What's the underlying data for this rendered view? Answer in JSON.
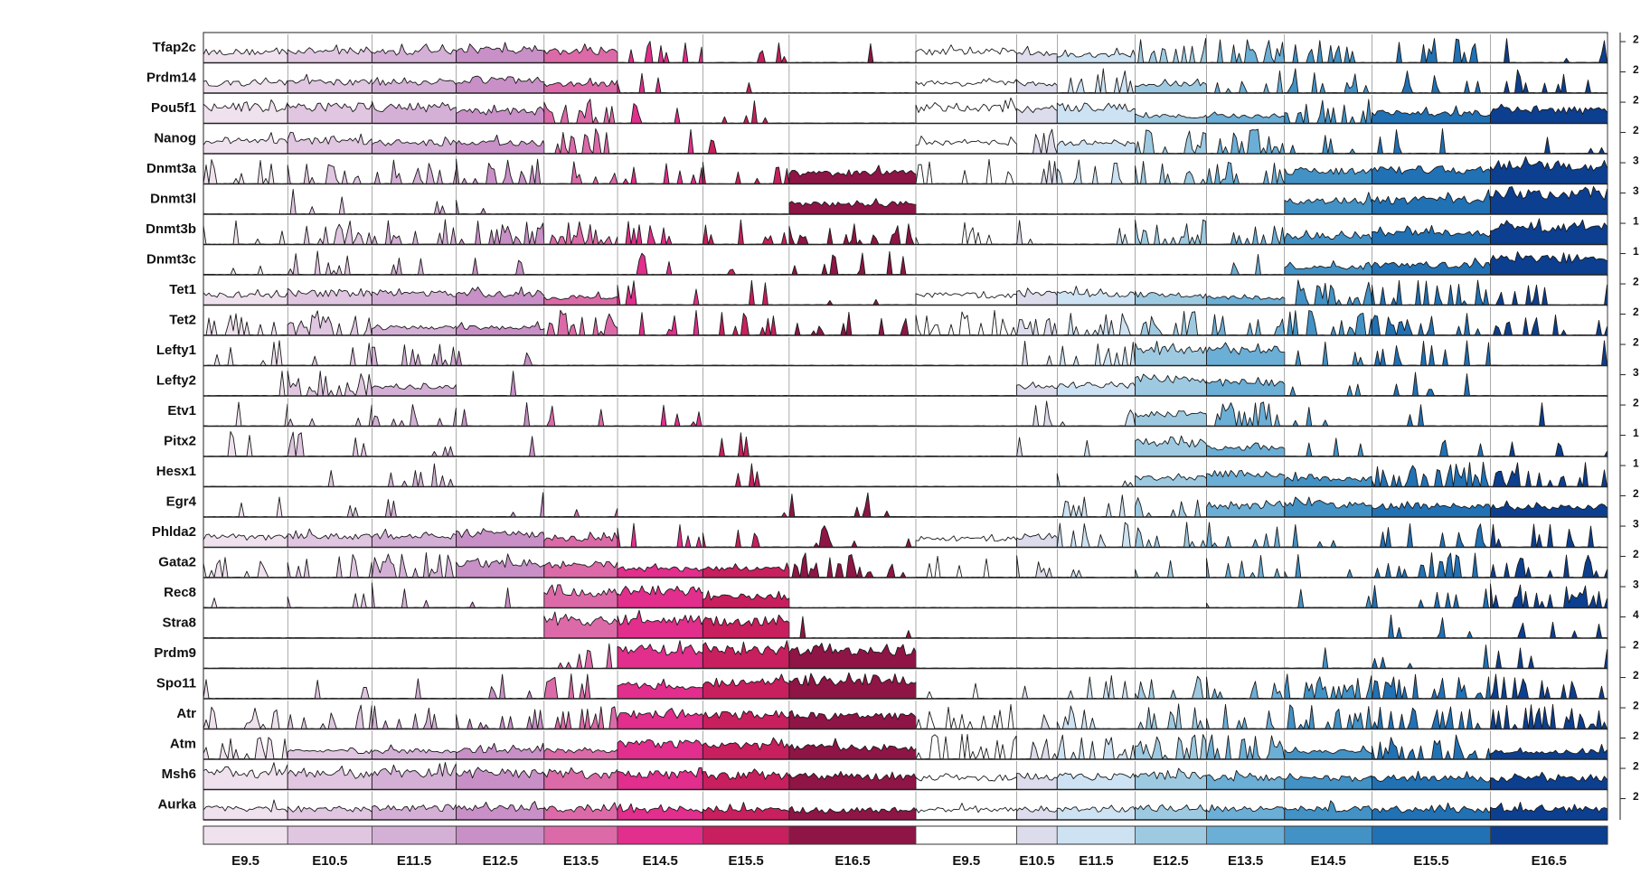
{
  "chart_data": {
    "type": "area",
    "title": "",
    "xlabel": "",
    "ylabel": "",
    "genes": [
      {
        "name": "Tfap2c",
        "scale": "2",
        "female": [
          0.5,
          0.55,
          0.5,
          0.6,
          0.5,
          0.1,
          0.05,
          0.03
        ],
        "male": [
          0.5,
          0.45,
          0.35,
          0.3,
          0.25,
          0.2,
          0.15,
          0.08
        ]
      },
      {
        "name": "Prdm14",
        "scale": "2",
        "female": [
          0.45,
          0.5,
          0.5,
          0.6,
          0.4,
          0.05,
          0.02,
          0.0
        ],
        "male": [
          0.45,
          0.4,
          0.3,
          0.4,
          0.2,
          0.15,
          0.12,
          0.08
        ]
      },
      {
        "name": "Pou5f1",
        "scale": "2",
        "female": [
          0.75,
          0.75,
          0.75,
          0.55,
          0.3,
          0.1,
          0.05,
          0.0
        ],
        "male": [
          0.7,
          0.65,
          0.75,
          0.35,
          0.35,
          0.3,
          0.45,
          0.6
        ]
      },
      {
        "name": "Nanog",
        "scale": "2",
        "female": [
          0.55,
          0.6,
          0.5,
          0.5,
          0.25,
          0.05,
          0.02,
          0.0
        ],
        "male": [
          0.5,
          0.2,
          0.5,
          0.3,
          0.2,
          0.1,
          0.08,
          0.05
        ]
      },
      {
        "name": "Dnmt3a",
        "scale": "3",
        "female": [
          0.15,
          0.2,
          0.2,
          0.2,
          0.15,
          0.1,
          0.15,
          0.5
        ],
        "male": [
          0.1,
          0.1,
          0.15,
          0.15,
          0.2,
          0.6,
          0.65,
          0.85
        ]
      },
      {
        "name": "Dnmt3l",
        "scale": "3",
        "female": [
          0.0,
          0.05,
          0.05,
          0.05,
          0.0,
          0.0,
          0.0,
          0.5
        ],
        "male": [
          0.0,
          0.0,
          0.0,
          0.0,
          0.0,
          0.6,
          0.65,
          0.9
        ]
      },
      {
        "name": "Dnmt3b",
        "scale": "1",
        "female": [
          0.1,
          0.15,
          0.2,
          0.3,
          0.3,
          0.15,
          0.15,
          0.2
        ],
        "male": [
          0.1,
          0.1,
          0.15,
          0.2,
          0.2,
          0.35,
          0.5,
          0.8
        ]
      },
      {
        "name": "Dnmt3c",
        "scale": "1",
        "female": [
          0.05,
          0.05,
          0.05,
          0.05,
          0.05,
          0.05,
          0.05,
          0.1
        ],
        "male": [
          0.0,
          0.0,
          0.0,
          0.0,
          0.05,
          0.35,
          0.45,
          0.75
        ]
      },
      {
        "name": "Tet1",
        "scale": "2",
        "female": [
          0.45,
          0.55,
          0.55,
          0.5,
          0.35,
          0.1,
          0.05,
          0.03
        ],
        "male": [
          0.45,
          0.5,
          0.5,
          0.45,
          0.35,
          0.3,
          0.25,
          0.15
        ]
      },
      {
        "name": "Tet2",
        "scale": "2",
        "female": [
          0.25,
          0.3,
          0.35,
          0.35,
          0.3,
          0.15,
          0.15,
          0.15
        ],
        "male": [
          0.3,
          0.25,
          0.25,
          0.2,
          0.2,
          0.2,
          0.2,
          0.15
        ]
      },
      {
        "name": "Lefty1",
        "scale": "2",
        "female": [
          0.05,
          0.1,
          0.15,
          0.05,
          0.0,
          0.0,
          0.0,
          0.0
        ],
        "male": [
          0.0,
          0.15,
          0.2,
          0.7,
          0.7,
          0.1,
          0.1,
          0.05
        ]
      },
      {
        "name": "Lefty2",
        "scale": "3",
        "female": [
          0.05,
          0.3,
          0.4,
          0.1,
          0.0,
          0.0,
          0.0,
          0.0
        ],
        "male": [
          0.0,
          0.4,
          0.5,
          0.8,
          0.6,
          0.05,
          0.05,
          0.0
        ]
      },
      {
        "name": "Etv1",
        "scale": "2",
        "female": [
          0.05,
          0.05,
          0.1,
          0.05,
          0.05,
          0.05,
          0.0,
          0.0
        ],
        "male": [
          0.0,
          0.05,
          0.1,
          0.55,
          0.3,
          0.05,
          0.05,
          0.05
        ]
      },
      {
        "name": "Pitx2",
        "scale": "1",
        "female": [
          0.05,
          0.05,
          0.05,
          0.05,
          0.0,
          0.0,
          0.05,
          0.0
        ],
        "male": [
          0.0,
          0.05,
          0.1,
          0.6,
          0.4,
          0.05,
          0.05,
          0.05
        ]
      },
      {
        "name": "Hesx1",
        "scale": "1",
        "female": [
          0.0,
          0.05,
          0.05,
          0.0,
          0.0,
          0.0,
          0.05,
          0.0
        ],
        "male": [
          0.0,
          0.0,
          0.05,
          0.4,
          0.6,
          0.35,
          0.3,
          0.2
        ]
      },
      {
        "name": "Egr4",
        "scale": "2",
        "female": [
          0.05,
          0.05,
          0.05,
          0.05,
          0.05,
          0.05,
          0.05,
          0.05
        ],
        "male": [
          0.0,
          0.05,
          0.1,
          0.2,
          0.5,
          0.55,
          0.5,
          0.45
        ]
      },
      {
        "name": "Phlda2",
        "scale": "3",
        "female": [
          0.45,
          0.5,
          0.5,
          0.6,
          0.4,
          0.1,
          0.05,
          0.05
        ],
        "male": [
          0.4,
          0.5,
          0.2,
          0.1,
          0.1,
          0.1,
          0.1,
          0.1
        ]
      },
      {
        "name": "Gata2",
        "scale": "2",
        "female": [
          0.15,
          0.2,
          0.25,
          0.65,
          0.6,
          0.4,
          0.4,
          0.3
        ],
        "male": [
          0.1,
          0.1,
          0.1,
          0.1,
          0.1,
          0.1,
          0.15,
          0.2
        ]
      },
      {
        "name": "Rec8",
        "scale": "3",
        "female": [
          0.05,
          0.05,
          0.05,
          0.1,
          0.7,
          0.8,
          0.5,
          0.0
        ],
        "male": [
          0.0,
          0.0,
          0.0,
          0.0,
          0.05,
          0.05,
          0.1,
          0.3
        ]
      },
      {
        "name": "Stra8",
        "scale": "4",
        "female": [
          0.0,
          0.0,
          0.0,
          0.0,
          0.8,
          0.85,
          0.8,
          0.05
        ],
        "male": [
          0.0,
          0.0,
          0.0,
          0.0,
          0.0,
          0.0,
          0.05,
          0.05
        ]
      },
      {
        "name": "Prdm9",
        "scale": "2",
        "female": [
          0.0,
          0.0,
          0.0,
          0.0,
          0.1,
          0.85,
          0.85,
          0.85
        ],
        "male": [
          0.0,
          0.0,
          0.0,
          0.0,
          0.0,
          0.05,
          0.05,
          0.05
        ]
      },
      {
        "name": "Spo11",
        "scale": "2",
        "female": [
          0.05,
          0.05,
          0.05,
          0.1,
          0.2,
          0.6,
          0.75,
          0.85
        ],
        "male": [
          0.05,
          0.05,
          0.1,
          0.15,
          0.2,
          0.25,
          0.25,
          0.25
        ]
      },
      {
        "name": "Atr",
        "scale": "2",
        "female": [
          0.15,
          0.15,
          0.15,
          0.2,
          0.25,
          0.7,
          0.65,
          0.6
        ],
        "male": [
          0.1,
          0.1,
          0.15,
          0.2,
          0.2,
          0.25,
          0.25,
          0.3
        ]
      },
      {
        "name": "Atm",
        "scale": "2",
        "female": [
          0.3,
          0.35,
          0.35,
          0.4,
          0.4,
          0.7,
          0.6,
          0.55
        ],
        "male": [
          0.25,
          0.2,
          0.25,
          0.3,
          0.3,
          0.35,
          0.3,
          0.35
        ]
      },
      {
        "name": "Msh6",
        "scale": "2",
        "female": [
          0.75,
          0.7,
          0.75,
          0.75,
          0.7,
          0.7,
          0.65,
          0.6
        ],
        "male": [
          0.55,
          0.6,
          0.6,
          0.65,
          0.55,
          0.5,
          0.5,
          0.5
        ]
      },
      {
        "name": "Aurka",
        "scale": "2",
        "female": [
          0.5,
          0.5,
          0.55,
          0.55,
          0.5,
          0.45,
          0.45,
          0.45
        ],
        "male": [
          0.45,
          0.5,
          0.5,
          0.55,
          0.5,
          0.5,
          0.45,
          0.5
        ]
      }
    ],
    "groups": [
      {
        "stages": [
          "E9.5",
          "E10.5",
          "E11.5",
          "E12.5",
          "E13.5",
          "E14.5",
          "E15.5",
          "E16.5"
        ],
        "colors": [
          "#efe2ee",
          "#e0c6e0",
          "#d4b0d6",
          "#c890c6",
          "#dc6aa8",
          "#e22e8c",
          "#c81f5e",
          "#8e1546"
        ],
        "fractions": [
          0.163,
          0.163,
          0.163,
          0.17,
          0.142,
          0.165,
          0.167,
          0.245
        ]
      },
      {
        "stages": [
          "E9.5",
          "E10.5",
          "E11.5",
          "E12.5",
          "E13.5",
          "E14.5",
          "E15.5",
          "E16.5"
        ],
        "colors": [
          "#ffffff",
          "#dcdcec",
          "#cde2f2",
          "#9ecae1",
          "#6baed6",
          "#4292c6",
          "#2171b5",
          "#0c3f8f"
        ],
        "fractions": [
          0.075,
          0.03,
          0.058,
          0.053,
          0.058,
          0.065,
          0.088,
          0.087
        ]
      }
    ],
    "legend_labels": [
      "E9.5",
      "E10.5",
      "E11.5",
      "E12.5",
      "E13.5",
      "E14.5",
      "E15.5",
      "E16.5",
      "E9.5",
      "E10.5",
      "E11.5",
      "E12.5",
      "E13.5",
      "E14.5",
      "E15.5",
      "E16.5"
    ]
  }
}
